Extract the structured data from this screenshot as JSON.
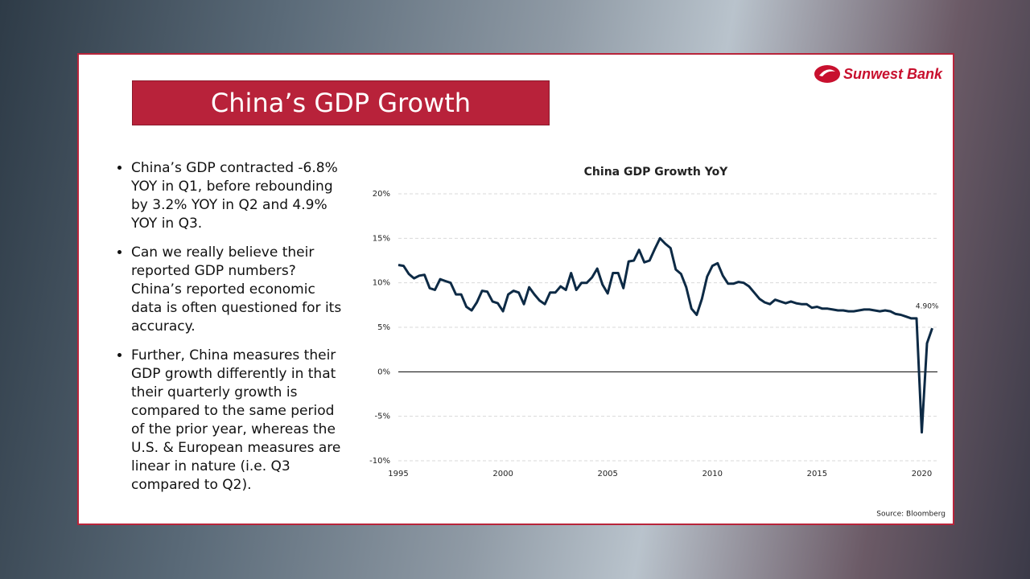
{
  "slide_title": "China’s GDP Growth",
  "logo": "Sunwest Bank",
  "bullets": [
    "China’s GDP contracted -6.8% YOY in Q1, before rebounding by 3.2% YOY in Q2 and 4.9% YOY in Q3.",
    "Can we really believe their reported GDP numbers? China’s reported economic data is often questioned for its accuracy.",
    "Further, China measures their GDP growth differently in that their quarterly growth is compared to the same period of the prior year, whereas the U.S. & European measures are linear in nature (i.e. Q3 compared to Q2)."
  ],
  "source": "Source: Bloomberg",
  "chart_data": {
    "type": "line",
    "title": "China GDP Growth YoY",
    "x": [
      1995,
      1995.25,
      1995.5,
      1995.75,
      1996,
      1996.25,
      1996.5,
      1996.75,
      1997,
      1997.25,
      1997.5,
      1997.75,
      1998,
      1998.25,
      1998.5,
      1998.75,
      1999,
      1999.25,
      1999.5,
      1999.75,
      2000,
      2000.25,
      2000.5,
      2000.75,
      2001,
      2001.25,
      2001.5,
      2001.75,
      2002,
      2002.25,
      2002.5,
      2002.75,
      2003,
      2003.25,
      2003.5,
      2003.75,
      2004,
      2004.25,
      2004.5,
      2004.75,
      2005,
      2005.25,
      2005.5,
      2005.75,
      2006,
      2006.25,
      2006.5,
      2006.75,
      2007,
      2007.25,
      2007.5,
      2007.75,
      2008,
      2008.25,
      2008.5,
      2008.75,
      2009,
      2009.25,
      2009.5,
      2009.75,
      2010,
      2010.25,
      2010.5,
      2010.75,
      2011,
      2011.25,
      2011.5,
      2011.75,
      2012,
      2012.25,
      2012.5,
      2012.75,
      2013,
      2013.25,
      2013.5,
      2013.75,
      2014,
      2014.25,
      2014.5,
      2014.75,
      2015,
      2015.25,
      2015.5,
      2015.75,
      2016,
      2016.25,
      2016.5,
      2016.75,
      2017,
      2017.25,
      2017.5,
      2017.75,
      2018,
      2018.25,
      2018.5,
      2018.75,
      2019,
      2019.25,
      2019.5,
      2019.75,
      2020,
      2020.25,
      2020.5
    ],
    "series": [
      {
        "color": "#0d2a45",
        "values": [
          12.0,
          11.9,
          11.0,
          10.5,
          10.8,
          10.9,
          9.4,
          9.2,
          10.4,
          10.2,
          10.0,
          8.7,
          8.7,
          7.3,
          6.9,
          7.8,
          9.1,
          9.0,
          7.9,
          7.7,
          6.8,
          8.7,
          9.1,
          8.9,
          7.6,
          9.5,
          8.7,
          8.0,
          7.6,
          8.9,
          8.9,
          9.6,
          9.2,
          11.1,
          9.2,
          10.0,
          10.0,
          10.6,
          11.6,
          9.8,
          8.8,
          11.1,
          11.1,
          9.4,
          12.4,
          12.5,
          13.7,
          12.3,
          12.5,
          13.8,
          15.0,
          14.4,
          13.9,
          11.5,
          11.0,
          9.5,
          7.1,
          6.4,
          8.2,
          10.7,
          11.9,
          12.2,
          10.8,
          9.9,
          9.9,
          10.1,
          10.0,
          9.6,
          8.9,
          8.2,
          7.8,
          7.6,
          8.1,
          7.9,
          7.7,
          7.9,
          7.7,
          7.6,
          7.6,
          7.2,
          7.3,
          7.1,
          7.1,
          7.0,
          6.9,
          6.9,
          6.8,
          6.8,
          6.9,
          7.0,
          7.0,
          6.9,
          6.8,
          6.9,
          6.8,
          6.5,
          6.4,
          6.2,
          6.0,
          6.0,
          -6.8,
          3.2,
          4.9
        ],
        "value_labels": [
          null,
          null,
          null,
          null,
          null,
          null,
          null,
          null,
          null,
          null,
          null,
          null,
          null,
          null,
          null,
          null,
          null,
          null,
          null,
          null,
          null,
          null,
          null,
          null,
          null,
          null,
          null,
          null,
          null,
          null,
          null,
          null,
          null,
          null,
          null,
          null,
          null,
          null,
          null,
          null,
          null,
          null,
          null,
          null,
          null,
          null,
          null,
          null,
          null,
          null,
          null,
          null,
          null,
          null,
          null,
          null,
          null,
          null,
          null,
          null,
          null,
          null,
          null,
          null,
          null,
          null,
          null,
          null,
          null,
          null,
          null,
          null,
          null,
          null,
          null,
          null,
          null,
          null,
          null,
          null,
          null,
          null,
          null,
          null,
          null,
          null,
          null,
          null,
          null,
          null,
          null,
          null,
          null,
          null,
          null,
          null,
          null,
          null,
          null,
          null,
          null,
          null,
          "4.90%"
        ]
      }
    ],
    "xlim": [
      1995,
      2020.75
    ],
    "xticks": [
      1995,
      2000,
      2005,
      2010,
      2015,
      2020
    ],
    "ylim": [
      -10,
      20
    ],
    "yticks": [
      {
        "value": -10,
        "label": "-10%"
      },
      {
        "value": -5,
        "label": "-5%"
      },
      {
        "value": 0,
        "label": "0%"
      },
      {
        "value": 5,
        "label": "5%"
      },
      {
        "value": 10,
        "label": "10%"
      },
      {
        "value": 15,
        "label": "15%"
      },
      {
        "value": 20,
        "label": "20%"
      }
    ],
    "grid": true
  }
}
